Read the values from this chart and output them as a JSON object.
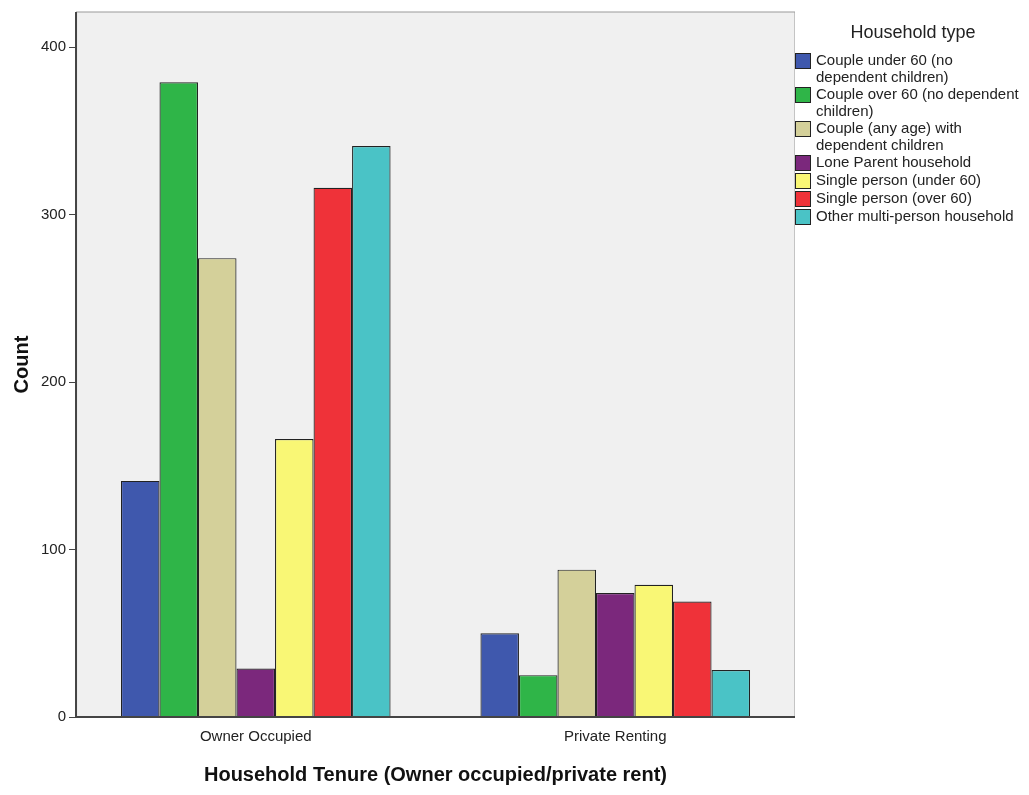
{
  "chart_data": {
    "type": "bar",
    "xlabel": "Household Tenure (Owner occupied/private rent)",
    "ylabel": "Count",
    "legend_title": "Household type",
    "legend": "right",
    "grid": false,
    "categories": [
      "Owner Occupied",
      "Private Renting"
    ],
    "ylim": [
      0,
      421
    ],
    "yticks": [
      0,
      100,
      200,
      300,
      400
    ],
    "series": [
      {
        "name": "Couple under 60 (no dependent children)",
        "color": "#3f58ad",
        "values": [
          141,
          50
        ]
      },
      {
        "name": "Couple over 60 (no dependent children)",
        "color": "#2fb548",
        "values": [
          379,
          25
        ]
      },
      {
        "name": "Couple (any age) with dependent children",
        "color": "#d4d09a",
        "values": [
          274,
          88
        ]
      },
      {
        "name": "Lone Parent household",
        "color": "#7b287c",
        "values": [
          29,
          74
        ]
      },
      {
        "name": "Single person (under 60)",
        "color": "#f9f775",
        "values": [
          166,
          79
        ]
      },
      {
        "name": "Single person (over 60)",
        "color": "#ef3239",
        "values": [
          316,
          69
        ]
      },
      {
        "name": "Other multi-person household",
        "color": "#4ac3c6",
        "values": [
          341,
          28
        ]
      }
    ]
  }
}
